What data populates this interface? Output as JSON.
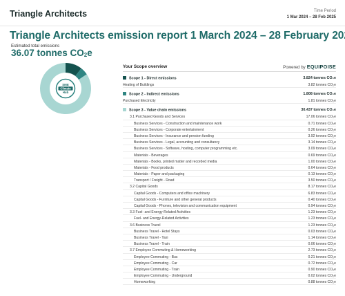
{
  "header": {
    "company": "Triangle Architects",
    "period_label": "Time Period",
    "period_value": "1 Mar 2024 – 28 Feb 2025"
  },
  "report_title": "Triangle Architects emission report 1 March 2024 – 28 February 2025",
  "total": {
    "label": "Estimated total emissions",
    "value": "36.07 tonnes CO",
    "sub": "2",
    "suffix": "e"
  },
  "badge": {
    "line1": "SME",
    "line2": "Climate",
    "line3": "Hub"
  },
  "donut": {
    "slices": [
      {
        "name": "Scope 1",
        "value": 3.824,
        "color": "#14524e"
      },
      {
        "name": "Scope 2",
        "value": 1.808,
        "color": "#2f8582"
      },
      {
        "name": "Scope 3",
        "value": 30.437,
        "color": "#a8d6d2"
      }
    ]
  },
  "overview": {
    "title": "Your Scope overview",
    "powered_by": "Powered by",
    "powered_brand": "EQUIPOISE",
    "rows": [
      {
        "type": "scope",
        "label": "Scope 1 - Direct emissions",
        "value": "3.824 tonnes CO₂e",
        "color": "#14524e"
      },
      {
        "type": "l1",
        "label": "Heating of Buildings",
        "value": "3.82 tonnes CO₂e"
      },
      {
        "type": "scope",
        "label": "Scope 2 - Indirect emissions",
        "value": "1.808 tonnes CO₂e",
        "color": "#2f8582"
      },
      {
        "type": "l1",
        "label": "Purchased Electricity",
        "value": "1.81 tonnes CO₂e"
      },
      {
        "type": "scope",
        "label": "Scope 3 - Value chain emissions",
        "value": "30.437 tonnes CO₂e",
        "color": "#a8d6d2"
      },
      {
        "type": "l2",
        "label": "3.1 Purchased Goods and Services",
        "value": "17.06 tonnes CO₂e"
      },
      {
        "type": "l3",
        "label": "Business Services - Construction and maintenance work",
        "value": "0.71 tonnes CO₂e"
      },
      {
        "type": "l3",
        "label": "Business Services - Corporate entertainment",
        "value": "0.26 tonnes CO₂e"
      },
      {
        "type": "l3",
        "label": "Business Services - Insurance and pension funding",
        "value": "3.92 tonnes CO₂e"
      },
      {
        "type": "l3",
        "label": "Business Services - Legal, accounting and consultancy",
        "value": "3.14 tonnes CO₂e"
      },
      {
        "type": "l3",
        "label": "Business Services - Software, hosting, computer programming etc.",
        "value": "3.09 tonnes CO₂e"
      },
      {
        "type": "l3",
        "label": "Materials - Beverages",
        "value": "0.69 tonnes CO₂e"
      },
      {
        "type": "l3",
        "label": "Materials - Books, printed matter and recorded media",
        "value": "1.00 tonnes CO₂e"
      },
      {
        "type": "l3",
        "label": "Materials - Food products",
        "value": "0.64 tonnes CO₂e"
      },
      {
        "type": "l3",
        "label": "Materials - Paper and packaging",
        "value": "0.13 tonnes CO₂e"
      },
      {
        "type": "l3",
        "label": "Transport / Freight - Road",
        "value": "3.50 tonnes CO₂e"
      },
      {
        "type": "l2",
        "label": "3.2 Capital Goods",
        "value": "8.17 tonnes CO₂e"
      },
      {
        "type": "l3",
        "label": "Capital Goods - Computers and office machinery",
        "value": "6.83 tonnes CO₂e"
      },
      {
        "type": "l3",
        "label": "Capital Goods - Furniture and other general products",
        "value": "0.40 tonnes CO₂e"
      },
      {
        "type": "l3",
        "label": "Capital Goods - Phones, television and communication equipment",
        "value": "0.94 tonnes CO₂e"
      },
      {
        "type": "l2",
        "label": "3.3 Fuel- and Energy-Related Activities",
        "value": "1.23 tonnes CO₂e"
      },
      {
        "type": "l3",
        "label": "Fuel- and Energy-Related Activities",
        "value": "1.23 tonnes CO₂e"
      },
      {
        "type": "l2",
        "label": "3.6 Business Travel",
        "value": "1.23 tonnes CO₂e"
      },
      {
        "type": "l3",
        "label": "Business Travel - Hotel Stays",
        "value": "0.03 tonnes CO₂e"
      },
      {
        "type": "l3",
        "label": "Business Travel - Taxi",
        "value": "1.14 tonnes CO₂e"
      },
      {
        "type": "l3",
        "label": "Business Travel - Train",
        "value": "0.06 tonnes CO₂e"
      },
      {
        "type": "l2",
        "label": "3.7 Employee Commuting & Homeworking",
        "value": "2.73 tonnes CO₂e"
      },
      {
        "type": "l3",
        "label": "Employee Commuting - Bus",
        "value": "0.21 tonnes CO₂e"
      },
      {
        "type": "l3",
        "label": "Employee Commuting - Car",
        "value": "0.72 tonnes CO₂e"
      },
      {
        "type": "l3",
        "label": "Employee Commuting - Train",
        "value": "0.90 tonnes CO₂e"
      },
      {
        "type": "l3",
        "label": "Employee Commuting - Underground",
        "value": "0.02 tonnes CO₂e"
      },
      {
        "type": "l3",
        "label": "Homeworking",
        "value": "0.88 tonnes CO₂e"
      }
    ]
  }
}
